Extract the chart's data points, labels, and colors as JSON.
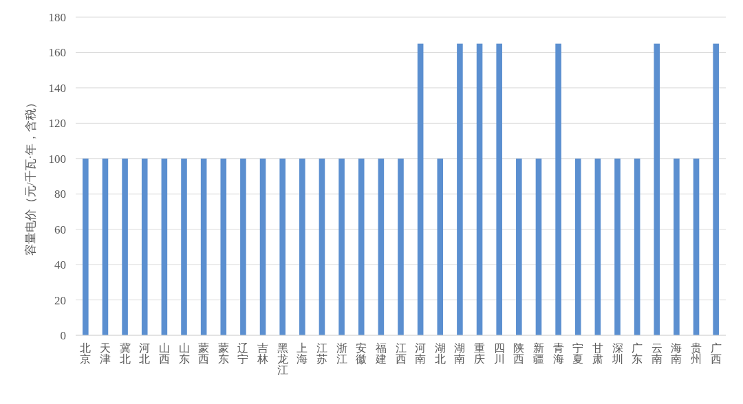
{
  "chart_data": {
    "type": "bar",
    "ylabel": "容量电价（元/千瓦·年，含税）",
    "categories": [
      "北京",
      "天津",
      "冀北",
      "河北",
      "山西",
      "山东",
      "蒙西",
      "蒙东",
      "辽宁",
      "吉林",
      "黑龙江",
      "上海",
      "江苏",
      "浙江",
      "安徽",
      "福建",
      "江西",
      "河南",
      "湖北",
      "湖南",
      "重庆",
      "四川",
      "陕西",
      "新疆",
      "青海",
      "宁夏",
      "甘肃",
      "深圳",
      "广东",
      "云南",
      "海南",
      "贵州",
      "广西"
    ],
    "values": [
      100,
      100,
      100,
      100,
      100,
      100,
      100,
      100,
      100,
      100,
      100,
      100,
      100,
      100,
      100,
      100,
      100,
      165,
      100,
      165,
      165,
      165,
      100,
      100,
      165,
      100,
      100,
      100,
      100,
      165,
      100,
      100,
      165
    ],
    "color": "#5b8fd0",
    "ylim": [
      0,
      180
    ],
    "yticks": [
      0,
      20,
      40,
      60,
      80,
      100,
      120,
      140,
      160,
      180
    ],
    "grid": "y"
  }
}
